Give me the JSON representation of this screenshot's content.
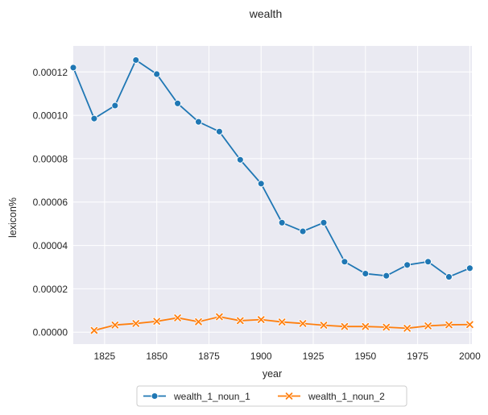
{
  "chart_data": {
    "type": "line",
    "title": "wealth",
    "xlabel": "year",
    "ylabel": "lexicon%",
    "xlim": [
      1810,
      2001
    ],
    "ylim": [
      -5.5e-06,
      0.000132
    ],
    "xticks": [
      1825,
      1850,
      1875,
      1900,
      1925,
      1950,
      1975,
      2000
    ],
    "xtick_labels": [
      "1825",
      "1850",
      "1875",
      "1900",
      "1925",
      "1950",
      "1975",
      "2000"
    ],
    "yticks": [
      0,
      2e-05,
      4e-05,
      6e-05,
      8e-05,
      0.0001,
      0.00012
    ],
    "ytick_labels": [
      "0.00000",
      "0.00002",
      "0.00004",
      "0.00006",
      "0.00008",
      "0.00010",
      "0.00012"
    ],
    "grid": true,
    "background": "#eaeaf2",
    "legend_position": "bottom-center",
    "series": [
      {
        "name": "wealth_1_noun_1",
        "color": "#1f77b4",
        "marker": "circle",
        "x": [
          1810,
          1820,
          1830,
          1840,
          1850,
          1860,
          1870,
          1880,
          1890,
          1900,
          1910,
          1920,
          1930,
          1940,
          1950,
          1960,
          1970,
          1980,
          1990,
          2000
        ],
        "y": [
          0.000122,
          9.85e-05,
          0.0001045,
          0.0001255,
          0.000119,
          0.0001055,
          9.7e-05,
          9.25e-05,
          7.95e-05,
          6.85e-05,
          5.05e-05,
          4.65e-05,
          5.05e-05,
          3.25e-05,
          2.7e-05,
          2.6e-05,
          3.1e-05,
          3.25e-05,
          2.55e-05,
          2.95e-05
        ]
      },
      {
        "name": "wealth_1_noun_2",
        "color": "#ff7f0e",
        "marker": "x",
        "x": [
          1820,
          1830,
          1840,
          1850,
          1860,
          1870,
          1880,
          1890,
          1900,
          1910,
          1920,
          1930,
          1940,
          1950,
          1960,
          1970,
          1980,
          1990,
          2000
        ],
        "y": [
          8e-07,
          3.3e-06,
          4e-06,
          5e-06,
          6.6e-06,
          4.8e-06,
          7.1e-06,
          5.3e-06,
          5.8e-06,
          4.7e-06,
          4e-06,
          3.2e-06,
          2.6e-06,
          2.6e-06,
          2.3e-06,
          1.8e-06,
          2.9e-06,
          3.4e-06,
          3.5e-06
        ]
      }
    ]
  }
}
